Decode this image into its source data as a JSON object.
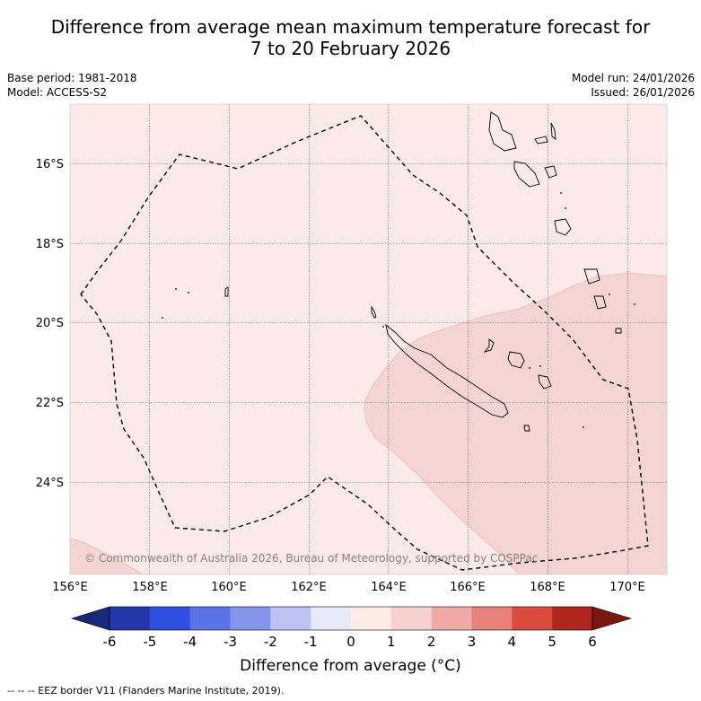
{
  "title": {
    "line1": "Difference from average mean maximum temperature forecast for",
    "line2": "7 to 20 February 2026"
  },
  "meta": {
    "base_period": "Base period: 1981-2018",
    "model": "Model: ACCESS-S2",
    "model_run": "Model run: 24/01/2026",
    "issued": "Issued: 26/01/2026"
  },
  "map": {
    "lon_ticks": [
      "156°E",
      "158°E",
      "160°E",
      "162°E",
      "164°E",
      "166°E",
      "168°E",
      "170°E"
    ],
    "lat_ticks": [
      "16°S",
      "18°S",
      "20°S",
      "22°S",
      "24°S"
    ],
    "background_class": "0 to 1",
    "region_class": "1 to 2",
    "copyright": "© Commonwealth of Australia 2026, Bureau of Meteorology, supported by COSPPac"
  },
  "colorbar": {
    "labels": [
      "-6",
      "-5",
      "-4",
      "-3",
      "-2",
      "-1",
      "0",
      "1",
      "2",
      "3",
      "4",
      "5",
      "6"
    ],
    "colors": [
      "#1a2878",
      "#2337a8",
      "#2e4fe0",
      "#5b72e8",
      "#8595ea",
      "#bcc3f2",
      "#e8eafa",
      "#fdebe6",
      "#f6d0cd",
      "#efaaa4",
      "#e8817a",
      "#dc4a3d",
      "#b0271f",
      "#7a1810"
    ],
    "label": "Difference from average (°C)"
  },
  "footnote": "--  --  -- EEZ border V11 (Flanders Marine Institute, 2019)."
}
